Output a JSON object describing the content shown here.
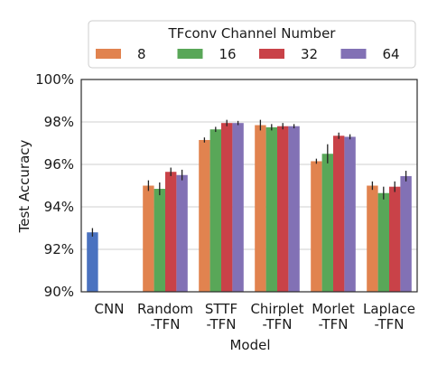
{
  "chart_data": {
    "type": "bar",
    "xlabel": "Model",
    "ylabel": "Test Accuracy",
    "ylim": [
      90,
      100
    ],
    "y_ticks": [
      "90%",
      "92%",
      "94%",
      "96%",
      "98%",
      "100%"
    ],
    "y_tick_values": [
      90,
      92,
      94,
      96,
      98,
      100
    ],
    "grid": "horizontal",
    "legend_position": "top",
    "legend_title": "TFconv Channel Number",
    "categories": [
      [
        "CNN"
      ],
      [
        "Random",
        "-TFN"
      ],
      [
        "STTF",
        "-TFN"
      ],
      [
        "Chirplet",
        "-TFN"
      ],
      [
        "Morlet",
        "-TFN"
      ],
      [
        "Laplace",
        "-TFN"
      ]
    ],
    "baseline": {
      "category_index": 0,
      "value": 92.8,
      "error": 0.2,
      "color": "#4a72c0"
    },
    "series": [
      {
        "name": "8",
        "color": "#e1834f",
        "values": [
          null,
          95.0,
          97.15,
          97.85,
          96.15,
          95.0
        ],
        "errors": [
          null,
          0.25,
          0.12,
          0.25,
          0.12,
          0.2
        ]
      },
      {
        "name": "16",
        "color": "#59a758",
        "values": [
          null,
          94.85,
          97.65,
          97.75,
          96.5,
          94.65
        ],
        "errors": [
          null,
          0.3,
          0.12,
          0.15,
          0.45,
          0.3
        ]
      },
      {
        "name": "32",
        "color": "#c94248",
        "values": [
          null,
          95.65,
          97.95,
          97.8,
          97.35,
          94.95
        ],
        "errors": [
          null,
          0.2,
          0.15,
          0.15,
          0.15,
          0.25
        ]
      },
      {
        "name": "64",
        "color": "#8271b5",
        "values": [
          null,
          95.5,
          97.95,
          97.8,
          97.3,
          95.45
        ],
        "errors": [
          null,
          0.25,
          0.1,
          0.1,
          0.12,
          0.25
        ]
      }
    ]
  }
}
